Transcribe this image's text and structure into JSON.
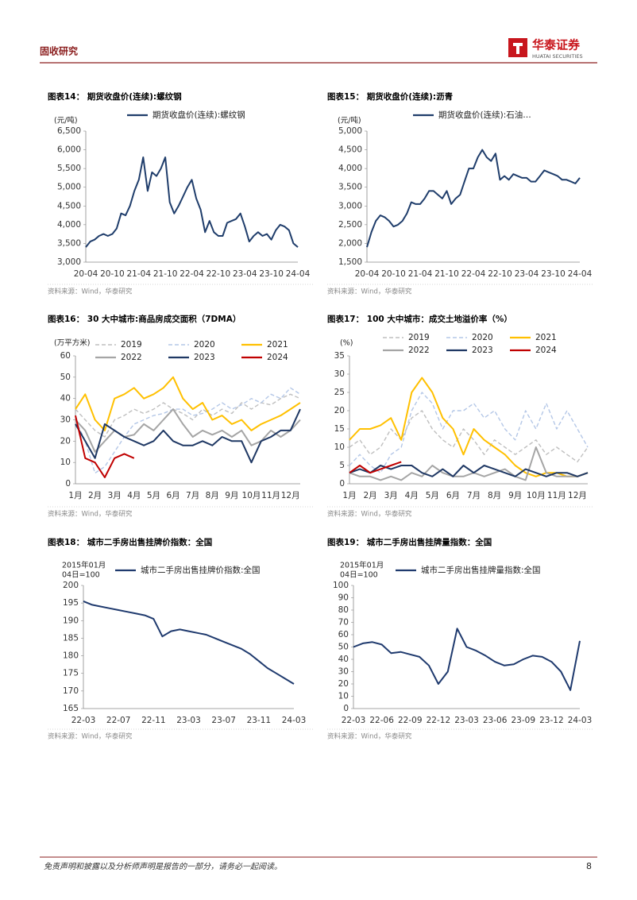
{
  "header": {
    "section": "固收研究",
    "logo": "华泰证券",
    "logo_sub": "HUATAI SECURITIES"
  },
  "footer": {
    "disclaimer": "免责声明和披露以及分析师声明是报告的一部分，请务必一起阅读。",
    "page": 8
  },
  "chart_data": [
    {
      "type": "line",
      "title": "图表14：  期货收盘价(连续):螺纹钢",
      "y_label": [
        "(元/吨)"
      ],
      "legend": "top",
      "source": "资料来源：Wind，华泰研究",
      "categories": [
        "20-04",
        null,
        null,
        null,
        null,
        null,
        "20-10",
        null,
        null,
        null,
        null,
        null,
        "21-04",
        null,
        null,
        null,
        null,
        null,
        "21-10",
        null,
        null,
        null,
        null,
        null,
        "22-04",
        null,
        null,
        null,
        null,
        null,
        "22-10",
        null,
        null,
        null,
        null,
        null,
        "23-04",
        null,
        null,
        null,
        null,
        null,
        "23-10",
        null,
        null,
        null,
        null,
        null,
        "24-04"
      ],
      "series": [
        {
          "name": "期货收盘价(连续):螺纹钢",
          "color": "#1f3d6b",
          "values": [
            3400,
            3550,
            3600,
            3700,
            3750,
            3700,
            3750,
            3900,
            4300,
            4250,
            4500,
            4900,
            5200,
            5800,
            4900,
            5400,
            5300,
            5500,
            5800,
            4600,
            4300,
            4500,
            4750,
            5000,
            5200,
            4700,
            4400,
            3800,
            4100,
            3800,
            3700,
            3700,
            4050,
            4100,
            4150,
            4300,
            3950,
            3550,
            3700,
            3800,
            3700,
            3750,
            3600,
            3850,
            4000,
            3950,
            3850,
            3500,
            3400
          ]
        }
      ],
      "ylim": [
        3000,
        6500
      ],
      "yticks": [
        {
          "value": 3000,
          "label": "3,000"
        },
        {
          "value": 3500,
          "label": "3,500"
        },
        {
          "value": 4000,
          "label": "4,000"
        },
        {
          "value": 4500,
          "label": "4,500"
        },
        {
          "value": 5000,
          "label": "5,000"
        },
        {
          "value": 5500,
          "label": "5,500"
        },
        {
          "value": 6000,
          "label": "6,000"
        },
        {
          "value": 6500,
          "label": "6,500"
        }
      ]
    },
    {
      "type": "line",
      "title": "图表15：  期货收盘价(连续):沥青",
      "y_label": [
        "(元/吨)"
      ],
      "legend": "top",
      "source": "资料来源：Wind，华泰研究",
      "categories": [
        "20-04",
        null,
        null,
        null,
        null,
        null,
        "20-10",
        null,
        null,
        null,
        null,
        null,
        "21-04",
        null,
        null,
        null,
        null,
        null,
        "21-10",
        null,
        null,
        null,
        null,
        null,
        "22-04",
        null,
        null,
        null,
        null,
        null,
        "22-10",
        null,
        null,
        null,
        null,
        null,
        "23-04",
        null,
        null,
        null,
        null,
        null,
        "23-10",
        null,
        null,
        null,
        null,
        null,
        "24-04"
      ],
      "series": [
        {
          "name": "期货收盘价(连续):石油…",
          "color": "#1f3d6b",
          "values": [
            1900,
            2300,
            2600,
            2750,
            2700,
            2600,
            2450,
            2500,
            2600,
            2800,
            3100,
            3050,
            3050,
            3200,
            3400,
            3400,
            3300,
            3200,
            3400,
            3050,
            3200,
            3300,
            3650,
            4000,
            4000,
            4300,
            4500,
            4300,
            4200,
            4400,
            3700,
            3800,
            3700,
            3850,
            3800,
            3750,
            3750,
            3650,
            3650,
            3800,
            3950,
            3900,
            3850,
            3800,
            3700,
            3700,
            3650,
            3600,
            3750
          ]
        }
      ],
      "ylim": [
        1500,
        5000
      ],
      "yticks": [
        {
          "value": 1500,
          "label": "1,500"
        },
        {
          "value": 2000,
          "label": "2,000"
        },
        {
          "value": 2500,
          "label": "2,500"
        },
        {
          "value": 3000,
          "label": "3,000"
        },
        {
          "value": 3500,
          "label": "3,500"
        },
        {
          "value": 4000,
          "label": "4,000"
        },
        {
          "value": 4500,
          "label": "4,500"
        },
        {
          "value": 5000,
          "label": "5,000"
        }
      ]
    },
    {
      "type": "line",
      "title": "图表16：  30 大中城市:商品房成交面积（7DMA）",
      "y_label": [
        "(万平方米)"
      ],
      "legend": "top",
      "source": "资料来源：Wind，华泰研究",
      "categories": [
        "1月",
        null,
        "2月",
        null,
        "3月",
        null,
        "4月",
        null,
        "5月",
        null,
        "6月",
        null,
        "7月",
        null,
        "8月",
        null,
        "9月",
        null,
        "10月",
        null,
        "11月",
        null,
        "12月",
        null
      ],
      "series": [
        {
          "name": "2019",
          "color": "#bfbfbf",
          "dashed": true,
          "values": [
            35,
            30,
            25,
            22,
            30,
            32,
            35,
            33,
            35,
            38,
            35,
            33,
            30,
            35,
            32,
            35,
            33,
            38,
            35,
            38,
            37,
            40,
            42,
            40
          ]
        },
        {
          "name": "2020",
          "color": "#b4c7e7",
          "dashed": true,
          "values": [
            30,
            20,
            5,
            8,
            15,
            22,
            28,
            30,
            32,
            33,
            35,
            35,
            32,
            33,
            35,
            38,
            35,
            37,
            40,
            38,
            42,
            40,
            45,
            42
          ]
        },
        {
          "name": "2021",
          "color": "#ffc000",
          "values": [
            35,
            42,
            30,
            25,
            40,
            42,
            45,
            40,
            42,
            45,
            50,
            40,
            35,
            38,
            30,
            32,
            28,
            30,
            25,
            28,
            30,
            32,
            35,
            38
          ]
        },
        {
          "name": "2022",
          "color": "#a5a5a5",
          "values": [
            30,
            25,
            15,
            20,
            25,
            22,
            23,
            28,
            25,
            30,
            35,
            28,
            22,
            25,
            23,
            25,
            22,
            25,
            18,
            20,
            25,
            22,
            25,
            30
          ]
        },
        {
          "name": "2023",
          "color": "#1f3864",
          "values": [
            28,
            20,
            12,
            28,
            25,
            22,
            20,
            18,
            20,
            25,
            20,
            18,
            18,
            20,
            18,
            22,
            20,
            20,
            10,
            20,
            22,
            25,
            25,
            35
          ]
        },
        {
          "name": "2024",
          "color": "#c00000",
          "values": [
            32,
            12,
            10,
            3,
            12,
            14,
            12,
            null,
            null,
            null,
            null,
            null,
            null,
            null,
            null,
            null,
            null,
            null,
            null,
            null,
            null,
            null,
            null,
            null
          ]
        }
      ],
      "ylim": [
        0,
        60
      ],
      "yticks": [
        0,
        10,
        20,
        30,
        40,
        50,
        60
      ]
    },
    {
      "type": "line",
      "title": "图表17：  100 大中城市：成交土地溢价率（%）",
      "y_label": [
        "(%)"
      ],
      "legend": "top",
      "source": "资料来源：Wind，华泰研究",
      "categories": [
        "1月",
        null,
        "2月",
        null,
        "3月",
        null,
        "4月",
        null,
        "5月",
        null,
        "6月",
        null,
        "7月",
        null,
        "8月",
        null,
        "9月",
        null,
        "10月",
        null,
        "11月",
        null,
        "12月",
        null
      ],
      "series": [
        {
          "name": "2019",
          "color": "#bfbfbf",
          "dashed": true,
          "values": [
            10,
            12,
            8,
            10,
            15,
            12,
            18,
            20,
            15,
            12,
            10,
            15,
            12,
            8,
            12,
            10,
            8,
            10,
            12,
            8,
            10,
            8,
            6,
            10
          ]
        },
        {
          "name": "2020",
          "color": "#b4c7e7",
          "dashed": true,
          "values": [
            5,
            8,
            5,
            3,
            8,
            10,
            20,
            25,
            22,
            15,
            20,
            20,
            22,
            18,
            20,
            15,
            12,
            20,
            15,
            22,
            15,
            20,
            15,
            10
          ]
        },
        {
          "name": "2021",
          "color": "#ffc000",
          "values": [
            12,
            15,
            15,
            16,
            18,
            12,
            25,
            29,
            25,
            18,
            15,
            8,
            15,
            12,
            10,
            8,
            5,
            3,
            2,
            3,
            3,
            2,
            2,
            3
          ]
        },
        {
          "name": "2022",
          "color": "#a5a5a5",
          "values": [
            3,
            2,
            2,
            1,
            2,
            1,
            3,
            2,
            5,
            3,
            2,
            2,
            3,
            2,
            3,
            4,
            2,
            1,
            10,
            3,
            2,
            2,
            2,
            3
          ]
        },
        {
          "name": "2023",
          "color": "#1f3864",
          "values": [
            3,
            4,
            3,
            5,
            4,
            5,
            5,
            3,
            2,
            4,
            2,
            5,
            3,
            5,
            4,
            3,
            2,
            4,
            3,
            2,
            3,
            3,
            2,
            3
          ]
        },
        {
          "name": "2024",
          "color": "#c00000",
          "values": [
            3,
            5,
            3,
            4,
            5,
            6,
            null,
            null,
            null,
            null,
            null,
            null,
            null,
            null,
            null,
            null,
            null,
            null,
            null,
            null,
            null,
            null,
            null,
            null
          ]
        }
      ],
      "ylim": [
        0,
        35
      ],
      "yticks": [
        0,
        5,
        10,
        15,
        20,
        25,
        30,
        35
      ]
    },
    {
      "type": "line",
      "title": "图表18：  城市二手房出售挂牌价指数：全国",
      "y_label": [
        "2015年01月",
        "04日=100"
      ],
      "legend": "top",
      "source": "资料来源：Wind，华泰研究",
      "categories": [
        "22-03",
        null,
        null,
        null,
        "22-07",
        null,
        null,
        null,
        "22-11",
        null,
        null,
        null,
        "23-03",
        null,
        null,
        null,
        "23-07",
        null,
        null,
        null,
        "23-11",
        null,
        null,
        null,
        "24-03"
      ],
      "series": [
        {
          "name": "城市二手房出售挂牌价指数:全国",
          "color": "#1f3a6e",
          "values": [
            195.5,
            194.5,
            194,
            193.5,
            193,
            192.5,
            192,
            191.5,
            190.5,
            185.5,
            187,
            187.5,
            187,
            186.5,
            186,
            185,
            184,
            183,
            182,
            180.5,
            178.5,
            176.5,
            175,
            173.5,
            172
          ]
        }
      ],
      "ylim": [
        165,
        200
      ],
      "yticks": [
        165,
        170,
        175,
        180,
        185,
        190,
        195,
        200
      ]
    },
    {
      "type": "line",
      "title": "图表19：  城市二手房出售挂牌量指数：全国",
      "y_label": [
        "2015年01月",
        "04日=100"
      ],
      "legend": "top",
      "source": "资料来源：Wind，华泰研究",
      "categories": [
        "22-03",
        null,
        null,
        "22-06",
        null,
        null,
        "22-09",
        null,
        null,
        "22-12",
        null,
        null,
        "23-03",
        null,
        null,
        "23-06",
        null,
        null,
        "23-09",
        null,
        null,
        "23-12",
        null,
        null,
        "24-03"
      ],
      "series": [
        {
          "name": "城市二手房出售挂牌量指数:全国",
          "color": "#1f3a6e",
          "values": [
            50,
            53,
            54,
            52,
            45,
            46,
            44,
            42,
            35,
            20,
            30,
            65,
            50,
            47,
            43,
            38,
            35,
            36,
            40,
            43,
            42,
            38,
            30,
            15,
            55
          ]
        }
      ],
      "ylim": [
        0,
        100
      ],
      "yticks": [
        0,
        10,
        20,
        30,
        40,
        50,
        60,
        70,
        80,
        90,
        100
      ]
    }
  ]
}
